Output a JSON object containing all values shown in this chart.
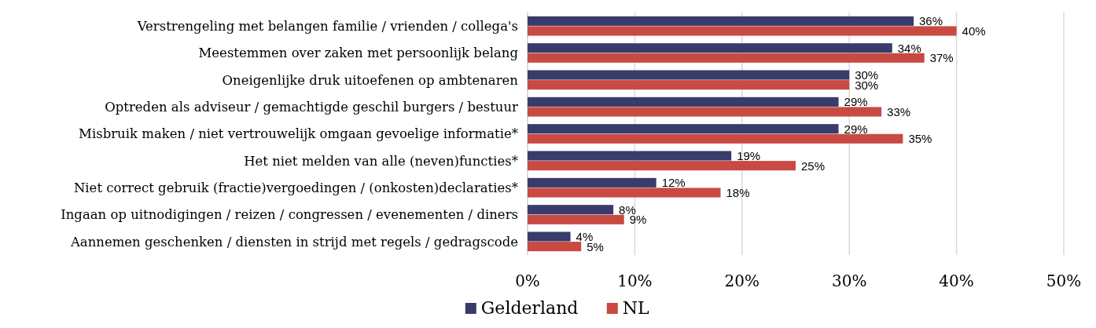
{
  "chart_data": {
    "type": "bar",
    "orientation": "horizontal",
    "categories": [
      "Verstrengeling met belangen familie / vrienden / collega's",
      "Meestemmen over zaken met persoonlijk belang",
      "Oneigenlijke druk uitoefenen op ambtenaren",
      "Optreden als adviseur / gemachtigde geschil burgers / bestuur",
      "Misbruik maken / niet vertrouwelijk omgaan gevoelige informatie*",
      "Het niet melden van alle (neven)functies*",
      "Niet correct gebruik (fractie)vergoedingen / (onkosten)declaraties*",
      "Ingaan op uitnodigingen / reizen / congressen / evenementen / diners",
      "Aannemen geschenken / diensten in strijd met regels / gedragscode"
    ],
    "series": [
      {
        "name": "Gelderland",
        "color": "#383c6b",
        "values": [
          36,
          34,
          30,
          29,
          29,
          19,
          12,
          8,
          4
        ],
        "value_labels": [
          "36%",
          "34%",
          "30%",
          "29%",
          "29%",
          "19%",
          "12%",
          "8%",
          "4%"
        ]
      },
      {
        "name": "NL",
        "color": "#c94a43",
        "values": [
          40,
          37,
          30,
          33,
          35,
          25,
          18,
          9,
          5
        ],
        "value_labels": [
          "40%",
          "37%",
          "30%",
          "33%",
          "35%",
          "25%",
          "18%",
          "9%",
          "5%"
        ]
      }
    ],
    "xlim": [
      0,
      50
    ],
    "xticks": [
      {
        "value": 0,
        "label": "0%"
      },
      {
        "value": 10,
        "label": "10%"
      },
      {
        "value": 20,
        "label": "20%"
      },
      {
        "value": 30,
        "label": "30%"
      },
      {
        "value": 40,
        "label": "40%"
      },
      {
        "value": 50,
        "label": "50%"
      }
    ],
    "grid": "x",
    "legend": "bottom"
  }
}
